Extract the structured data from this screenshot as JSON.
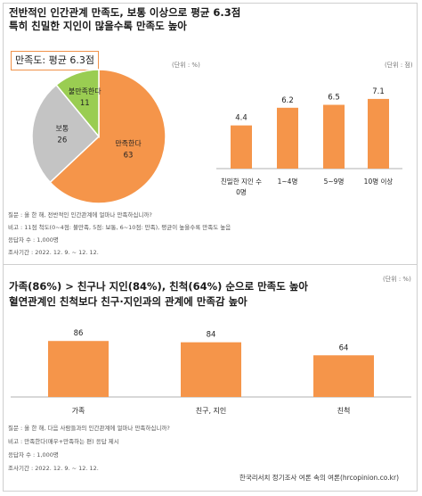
{
  "top": {
    "title_line1": "전반적인 인간관계 만족도, 보통 이상으로 평균 6.3점",
    "title_line2": "특히 친밀한 지인이 많을수록 만족도 높아",
    "badge": "만족도: 평균 6.3점",
    "unit_left": "(단위 : %)",
    "unit_right": "(단위 : 점)",
    "notes": [
      "질문 : 올 한 해, 전반적인 인간관계에 얼마나 만족하십니까?",
      "비고 : 11점 척도(0~4점: 불만족, 5점: 보통, 6~10점: 만족), 평균이 높을수록 만족도 높음",
      "응답자 수 : 1,000명",
      "조사기간 : 2022. 12. 9. ~ 12. 12."
    ]
  },
  "bottom": {
    "title_line1": "가족(86%) > 친구나 지인(84%), 친척(64%) 순으로 만족도 높아",
    "title_line2": "혈연관계인 친척보다 친구·지인과의 관계에 만족감 높아",
    "unit": "(단위 : %)",
    "notes": [
      "질문 : 올 한 해, 다음 사람들과의 인간관계에 얼마나 만족하십니까?",
      "비고 : 만족한다(매우+만족하는 편) 응답 제시",
      "응답자 수 : 1,000명",
      "조사기간 : 2022. 12. 9. ~ 12. 12."
    ]
  },
  "footer": "한국리서치 정기조사 여론 속의 여론(hrcopinion.co.kr)",
  "colors": {
    "orange": "#F5954A",
    "gray": "#C4C4C4",
    "green": "#9ACD52",
    "text": "#222222"
  },
  "chart_data": [
    {
      "type": "pie",
      "categories": [
        "만족한다",
        "보통",
        "불만족한다"
      ],
      "values": [
        63,
        26,
        11
      ],
      "colors": [
        "#F5954A",
        "#C4C4C4",
        "#9ACD52"
      ]
    },
    {
      "type": "bar",
      "categories": [
        "친밀한 지인 수 0명",
        "1~4명",
        "5~9명",
        "10명 이상"
      ],
      "category_lines": [
        [
          "친밀한 지인 수",
          "0명"
        ],
        [
          "1~4명"
        ],
        [
          "5~9명"
        ],
        [
          "10명 이상"
        ]
      ],
      "values": [
        4.4,
        6.2,
        6.5,
        7.1
      ],
      "ylim": [
        0,
        8
      ]
    },
    {
      "type": "bar",
      "categories": [
        "가족",
        "친구, 지인",
        "친척"
      ],
      "values": [
        86,
        84,
        64
      ],
      "ylim": [
        0,
        100
      ]
    }
  ]
}
